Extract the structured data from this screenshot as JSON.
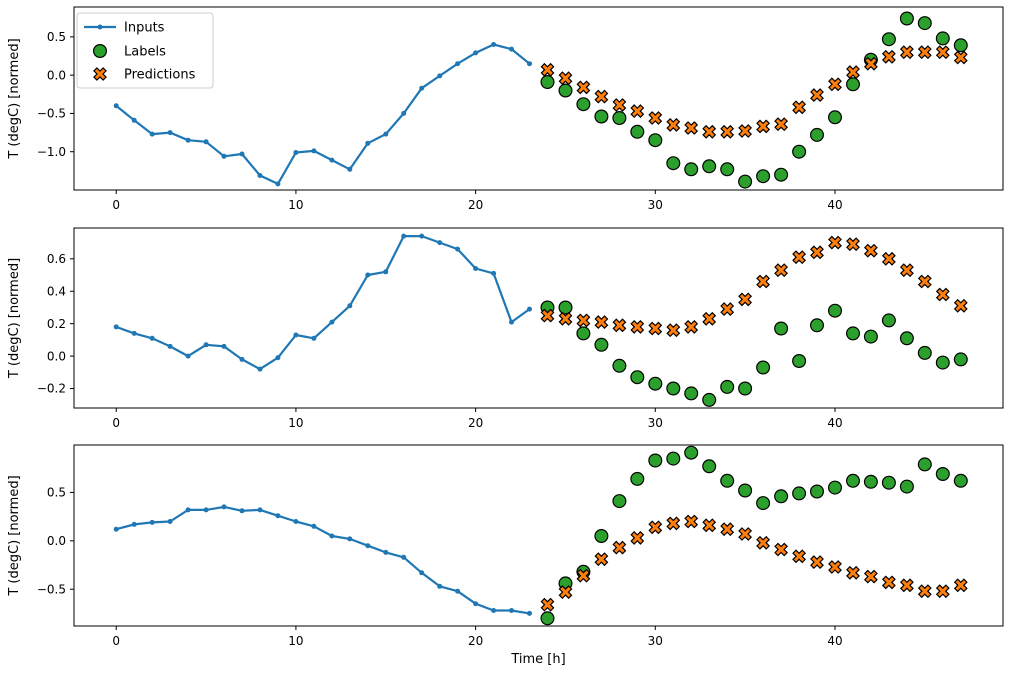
{
  "figure": {
    "background": "#ffffff",
    "legend": {
      "position": "upper-left",
      "entries": [
        {
          "label": "Inputs",
          "marker": "line-dot",
          "color": "#1f77b4"
        },
        {
          "label": "Labels",
          "marker": "circle",
          "color": "#2ca02c"
        },
        {
          "label": "Predictions",
          "marker": "x",
          "color": "#ff7f0e"
        }
      ]
    }
  },
  "chart_data": [
    {
      "type": "line+scatter",
      "title": "",
      "ylabel": "T (degC) [normed]",
      "xlabel": "",
      "xlim": [
        -2.35,
        49.35
      ],
      "ylim": [
        -1.5,
        0.89
      ],
      "xticks": [
        0,
        10,
        20,
        30,
        40
      ],
      "yticks": [
        0.5,
        0.0,
        -0.5,
        -1.0
      ],
      "grid": false,
      "legend_position": "upper left",
      "series": [
        {
          "name": "Inputs",
          "type": "line",
          "color": "#1f77b4",
          "x": [
            0,
            1,
            2,
            3,
            4,
            5,
            6,
            7,
            8,
            9,
            10,
            11,
            12,
            13,
            14,
            15,
            16,
            17,
            18,
            19,
            20,
            21,
            22,
            23
          ],
          "values": [
            -0.4,
            -0.59,
            -0.77,
            -0.75,
            -0.85,
            -0.87,
            -1.06,
            -1.03,
            -1.31,
            -1.42,
            -1.01,
            -0.99,
            -1.11,
            -1.23,
            -0.89,
            -0.77,
            -0.5,
            -0.17,
            -0.01,
            0.15,
            0.29,
            0.4,
            0.34,
            0.15
          ]
        },
        {
          "name": "Labels",
          "type": "scatter-circle",
          "color": "#2ca02c",
          "x": [
            24,
            25,
            26,
            27,
            28,
            29,
            30,
            31,
            32,
            33,
            34,
            35,
            36,
            37,
            38,
            39,
            40,
            41,
            42,
            43,
            44,
            45,
            46,
            47
          ],
          "values": [
            -0.09,
            -0.2,
            -0.38,
            -0.54,
            -0.56,
            -0.74,
            -0.85,
            -1.15,
            -1.23,
            -1.19,
            -1.23,
            -1.39,
            -1.32,
            -1.3,
            -1.0,
            -0.78,
            -0.55,
            -0.12,
            0.2,
            0.47,
            0.74,
            0.68,
            0.48,
            0.39
          ]
        },
        {
          "name": "Predictions",
          "type": "scatter-x",
          "color": "#ff7f0e",
          "x": [
            24,
            25,
            26,
            27,
            28,
            29,
            30,
            31,
            32,
            33,
            34,
            35,
            36,
            37,
            38,
            39,
            40,
            41,
            42,
            43,
            44,
            45,
            46,
            47
          ],
          "values": [
            0.07,
            -0.04,
            -0.16,
            -0.28,
            -0.39,
            -0.47,
            -0.56,
            -0.65,
            -0.69,
            -0.74,
            -0.74,
            -0.73,
            -0.67,
            -0.64,
            -0.42,
            -0.26,
            -0.12,
            0.04,
            0.15,
            0.24,
            0.3,
            0.3,
            0.3,
            0.23
          ]
        }
      ]
    },
    {
      "type": "line+scatter",
      "title": "",
      "ylabel": "T (degC) [normed]",
      "xlabel": "",
      "xlim": [
        -2.35,
        49.35
      ],
      "ylim": [
        -0.32,
        0.79
      ],
      "xticks": [
        0,
        10,
        20,
        30,
        40
      ],
      "yticks": [
        0.6,
        0.4,
        0.2,
        0.0,
        -0.2
      ],
      "grid": false,
      "series": [
        {
          "name": "Inputs",
          "type": "line",
          "color": "#1f77b4",
          "x": [
            0,
            1,
            2,
            3,
            4,
            5,
            6,
            7,
            8,
            9,
            10,
            11,
            12,
            13,
            14,
            15,
            16,
            17,
            18,
            19,
            20,
            21,
            22,
            23
          ],
          "values": [
            0.18,
            0.14,
            0.11,
            0.06,
            0.0,
            0.07,
            0.06,
            -0.02,
            -0.08,
            -0.01,
            0.13,
            0.11,
            0.21,
            0.31,
            0.5,
            0.52,
            0.74,
            0.74,
            0.7,
            0.66,
            0.54,
            0.51,
            0.21,
            0.29
          ]
        },
        {
          "name": "Labels",
          "type": "scatter-circle",
          "color": "#2ca02c",
          "x": [
            24,
            25,
            26,
            27,
            28,
            29,
            30,
            31,
            32,
            33,
            34,
            35,
            36,
            37,
            38,
            39,
            40,
            41,
            42,
            43,
            44,
            45,
            46,
            47
          ],
          "values": [
            0.3,
            0.3,
            0.14,
            0.07,
            -0.06,
            -0.13,
            -0.17,
            -0.2,
            -0.23,
            -0.27,
            -0.19,
            -0.2,
            -0.07,
            0.17,
            -0.03,
            0.19,
            0.28,
            0.14,
            0.12,
            0.22,
            0.11,
            0.02,
            -0.04,
            -0.02
          ]
        },
        {
          "name": "Predictions",
          "type": "scatter-x",
          "color": "#ff7f0e",
          "x": [
            24,
            25,
            26,
            27,
            28,
            29,
            30,
            31,
            32,
            33,
            34,
            35,
            36,
            37,
            38,
            39,
            40,
            41,
            42,
            43,
            44,
            45,
            46,
            47
          ],
          "values": [
            0.25,
            0.23,
            0.22,
            0.21,
            0.19,
            0.18,
            0.17,
            0.16,
            0.18,
            0.23,
            0.29,
            0.35,
            0.46,
            0.53,
            0.61,
            0.64,
            0.7,
            0.69,
            0.65,
            0.6,
            0.53,
            0.46,
            0.38,
            0.31
          ]
        }
      ]
    },
    {
      "type": "line+scatter",
      "title": "",
      "ylabel": "T (degC) [normed]",
      "xlabel": "Time [h]",
      "xlim": [
        -2.35,
        49.35
      ],
      "ylim": [
        -0.88,
        0.99
      ],
      "xticks": [
        0,
        10,
        20,
        30,
        40
      ],
      "yticks": [
        0.5,
        0.0,
        -0.5
      ],
      "grid": false,
      "series": [
        {
          "name": "Inputs",
          "type": "line",
          "color": "#1f77b4",
          "x": [
            0,
            1,
            2,
            3,
            4,
            5,
            6,
            7,
            8,
            9,
            10,
            11,
            12,
            13,
            14,
            15,
            16,
            17,
            18,
            19,
            20,
            21,
            22,
            23
          ],
          "values": [
            0.12,
            0.17,
            0.19,
            0.2,
            0.32,
            0.32,
            0.35,
            0.31,
            0.32,
            0.26,
            0.2,
            0.15,
            0.05,
            0.02,
            -0.05,
            -0.12,
            -0.17,
            -0.33,
            -0.47,
            -0.52,
            -0.65,
            -0.72,
            -0.72,
            -0.75
          ]
        },
        {
          "name": "Labels",
          "type": "scatter-circle",
          "color": "#2ca02c",
          "x": [
            24,
            25,
            26,
            27,
            28,
            29,
            30,
            31,
            32,
            33,
            34,
            35,
            36,
            37,
            38,
            39,
            40,
            41,
            42,
            43,
            44,
            45,
            46,
            47
          ],
          "values": [
            -0.8,
            -0.44,
            -0.32,
            0.05,
            0.41,
            0.64,
            0.83,
            0.85,
            0.91,
            0.77,
            0.62,
            0.52,
            0.39,
            0.46,
            0.49,
            0.51,
            0.55,
            0.62,
            0.61,
            0.6,
            0.56,
            0.79,
            0.69,
            0.62
          ]
        },
        {
          "name": "Predictions",
          "type": "scatter-x",
          "color": "#ff7f0e",
          "x": [
            24,
            25,
            26,
            27,
            28,
            29,
            30,
            31,
            32,
            33,
            34,
            35,
            36,
            37,
            38,
            39,
            40,
            41,
            42,
            43,
            44,
            45,
            46,
            47
          ],
          "values": [
            -0.66,
            -0.53,
            -0.36,
            -0.19,
            -0.07,
            0.03,
            0.14,
            0.18,
            0.2,
            0.16,
            0.12,
            0.07,
            -0.02,
            -0.09,
            -0.16,
            -0.22,
            -0.27,
            -0.33,
            -0.37,
            -0.43,
            -0.46,
            -0.52,
            -0.52,
            -0.46
          ]
        }
      ]
    }
  ]
}
